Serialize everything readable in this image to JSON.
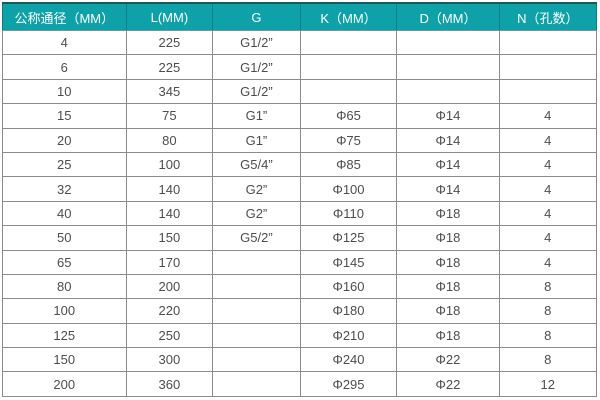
{
  "colors": {
    "header_bg": "#0EA2A8",
    "header_top_border": "#0B5E62",
    "header_divider": "#0C7F84",
    "header_text": "#FFFFFF",
    "grid": "#8B8B8B",
    "body_text": "#4D4D4D",
    "page_bg": "#FFFFFF"
  },
  "chart_data": {
    "type": "table",
    "title": "",
    "columns": [
      "公称通径（MM）",
      "L(MM)",
      "G",
      "K（MM）",
      "D（MM）",
      "N（孔数）"
    ],
    "column_widths_pct": [
      20.8,
      14.6,
      14.7,
      16.3,
      17.2,
      16.4
    ],
    "rows": [
      [
        "4",
        "225",
        "G1/2”",
        "",
        "",
        ""
      ],
      [
        "6",
        "225",
        "G1/2”",
        "",
        "",
        ""
      ],
      [
        "10",
        "345",
        "G1/2”",
        "",
        "",
        ""
      ],
      [
        "15",
        "75",
        "G1”",
        "Φ65",
        "Φ14",
        "4"
      ],
      [
        "20",
        "80",
        "G1”",
        "Φ75",
        "Φ14",
        "4"
      ],
      [
        "25",
        "100",
        "G5/4”",
        "Φ85",
        "Φ14",
        "4"
      ],
      [
        "32",
        "140",
        "G2”",
        "Φ100",
        "Φ14",
        "4"
      ],
      [
        "40",
        "140",
        "G2”",
        "Φ110",
        "Φ18",
        "4"
      ],
      [
        "50",
        "150",
        "G5/2”",
        "Φ125",
        "Φ18",
        "4"
      ],
      [
        "65",
        "170",
        "",
        "Φ145",
        "Φ18",
        "4"
      ],
      [
        "80",
        "200",
        "",
        "Φ160",
        "Φ18",
        "8"
      ],
      [
        "100",
        "220",
        "",
        "Φ180",
        "Φ18",
        "8"
      ],
      [
        "125",
        "250",
        "",
        "Φ210",
        "Φ18",
        "8"
      ],
      [
        "150",
        "300",
        "",
        "Φ240",
        "Φ22",
        "8"
      ],
      [
        "200",
        "360",
        "",
        "Φ295",
        "Φ22",
        "12"
      ]
    ]
  }
}
